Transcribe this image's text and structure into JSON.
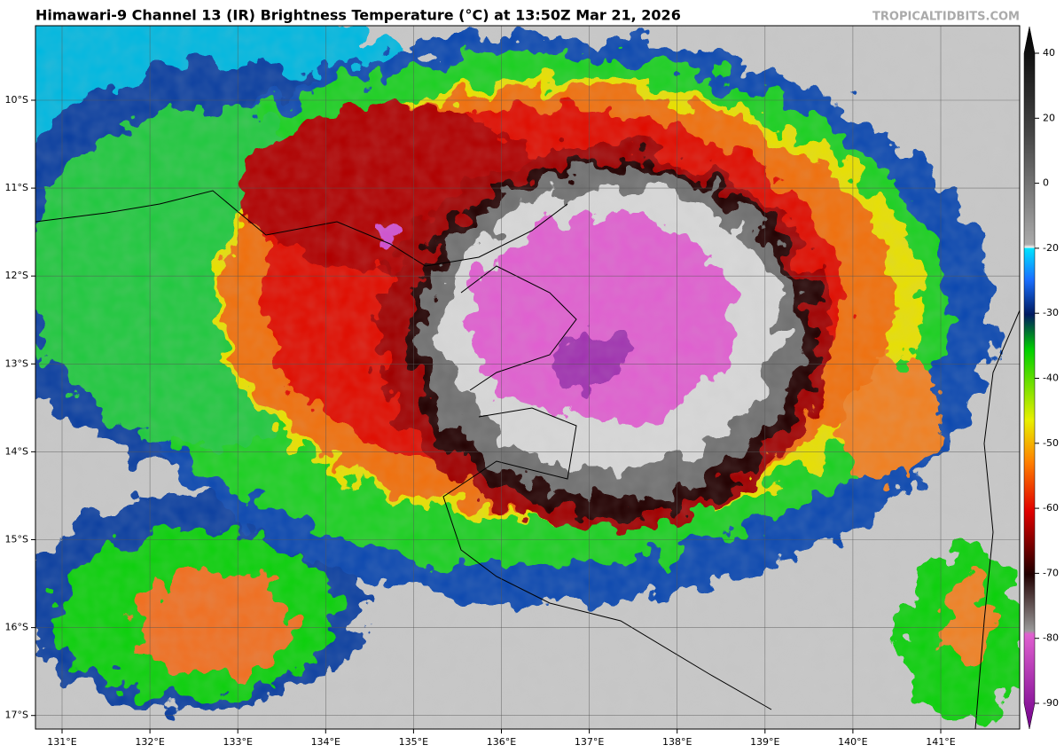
{
  "header": {
    "title": "Himawari-9 Channel 13 (IR) Brightness Temperature (°C) at 13:50Z Mar 21, 2026",
    "credit": "TROPICALTIDBITS.COM"
  },
  "map": {
    "lon_labels": [
      "131°E",
      "132°E",
      "133°E",
      "134°E",
      "135°E",
      "136°E",
      "137°E",
      "138°E",
      "139°E",
      "140°E",
      "141°E"
    ],
    "lat_labels": [
      "10°S",
      "11°S",
      "12°S",
      "13°S",
      "14°S",
      "15°S",
      "16°S",
      "17°S"
    ]
  },
  "colorbar": {
    "ticks": [
      40,
      20,
      0,
      -20,
      -30,
      -40,
      -50,
      -60,
      -70,
      -80,
      -90
    ]
  }
}
